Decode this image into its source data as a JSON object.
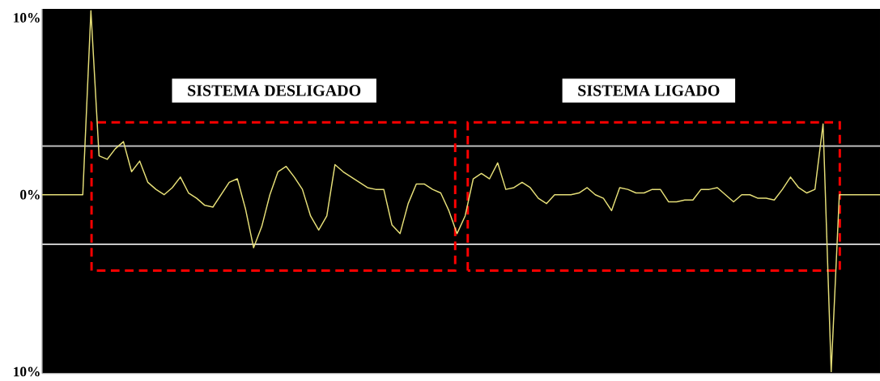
{
  "chart_data": {
    "type": "line",
    "categories": [
      null,
      null,
      null,
      null,
      null,
      null,
      null,
      null,
      null,
      null,
      null,
      null,
      null,
      null,
      null,
      null,
      null,
      null,
      null,
      null,
      null,
      null,
      null,
      null,
      null,
      null,
      null,
      null,
      null,
      null,
      null,
      null,
      null,
      null,
      null,
      null,
      null,
      null,
      null,
      null,
      null,
      null,
      null,
      null,
      null,
      null,
      null,
      null,
      null,
      null,
      null,
      null,
      null,
      null,
      null,
      null,
      null,
      null,
      null,
      null,
      null,
      null,
      null,
      null,
      null,
      null,
      null,
      null,
      null,
      null,
      null,
      null,
      null,
      null,
      null,
      null,
      null,
      null,
      null,
      null,
      null,
      null,
      null,
      null,
      null,
      null,
      null,
      null,
      null,
      null,
      null,
      null,
      null,
      null,
      null,
      null,
      null,
      null,
      null,
      null,
      null,
      null,
      null,
      null
    ],
    "series": [
      {
        "color": "#e6df78",
        "values": [
          0,
          0,
          0,
          0,
          0,
          0,
          10.4,
          2.2,
          2.0,
          2.6,
          3.0,
          1.3,
          1.9,
          0.7,
          0.3,
          0.0,
          0.4,
          1.0,
          0.1,
          -0.2,
          -0.6,
          -0.7,
          0,
          0.7,
          0.9,
          -0.8,
          -3.0,
          -1.8,
          0,
          1.3,
          1.6,
          1.0,
          0.3,
          -1.2,
          -2.0,
          -1.2,
          1.7,
          1.3,
          1.0,
          0.7,
          0.4,
          0.3,
          0.3,
          -1.7,
          -2.2,
          -0.5,
          0.6,
          0.6,
          0.3,
          0.1,
          -0.9,
          -2.2,
          -1.2,
          0.9,
          1.2,
          0.9,
          1.8,
          0.3,
          0.4,
          0.7,
          0.4,
          -0.2,
          -0.5,
          0,
          0,
          0,
          0.1,
          0.4,
          0,
          -0.2,
          -0.9,
          0.4,
          0.3,
          0.1,
          0.1,
          0.3,
          0.3,
          -0.4,
          -0.4,
          -0.3,
          -0.3,
          0.3,
          0.3,
          0.4,
          0,
          -0.4,
          0,
          0,
          -0.2,
          -0.2,
          -0.3,
          0.3,
          1.0,
          0.4,
          0.1,
          0.3,
          4.0,
          -10,
          0,
          0,
          0,
          0,
          0,
          0
        ]
      }
    ],
    "ylim": [
      -10.1,
      10.5
    ],
    "yticks": [
      {
        "value": 10,
        "label": "10%"
      },
      {
        "value": 0,
        "label": "0%"
      },
      {
        "value": -10,
        "label": "10%"
      }
    ],
    "tick_labels": "y",
    "grid": false,
    "marker": "none",
    "ref_lines": [
      {
        "axis": "y",
        "value": 2.75,
        "color": "#c8c8c8"
      },
      {
        "axis": "y",
        "value": -2.8,
        "color": "#c8c8c8"
      }
    ],
    "annotations": [
      "SISTEMA DESLIGADO",
      "SISTEMA LIGADO"
    ]
  }
}
